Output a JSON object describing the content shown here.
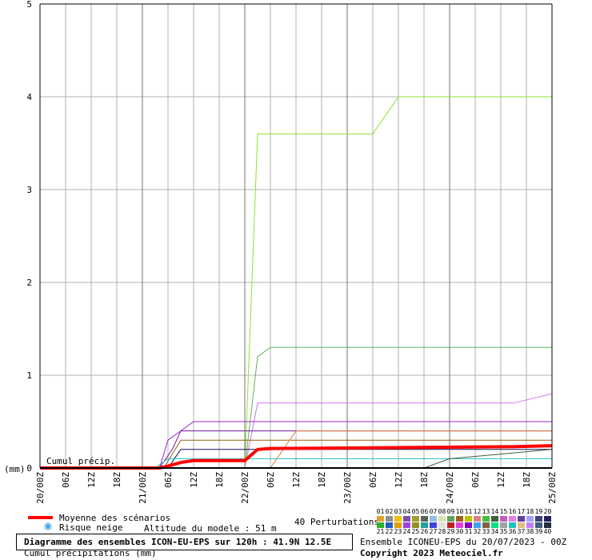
{
  "chart_data": {
    "type": "line",
    "y_unit_label": "(mm)",
    "annotation": "Cumul précip.",
    "xlim": [
      0,
      120
    ],
    "ylim": [
      0,
      5
    ],
    "yticks": [
      0,
      1,
      2,
      3,
      4,
      5
    ],
    "xticks": [
      {
        "value": 0,
        "label": "20/00Z"
      },
      {
        "value": 6,
        "label": "06Z"
      },
      {
        "value": 12,
        "label": "12Z"
      },
      {
        "value": 18,
        "label": "18Z"
      },
      {
        "value": 24,
        "label": "21/00Z"
      },
      {
        "value": 30,
        "label": "06Z"
      },
      {
        "value": 36,
        "label": "12Z"
      },
      {
        "value": 42,
        "label": "18Z"
      },
      {
        "value": 48,
        "label": "22/00Z"
      },
      {
        "value": 54,
        "label": "06Z"
      },
      {
        "value": 60,
        "label": "12Z"
      },
      {
        "value": 66,
        "label": "18Z"
      },
      {
        "value": 72,
        "label": "23/00Z"
      },
      {
        "value": 78,
        "label": "06Z"
      },
      {
        "value": 84,
        "label": "12Z"
      },
      {
        "value": 90,
        "label": "18Z"
      },
      {
        "value": 96,
        "label": "24/00Z"
      },
      {
        "value": 102,
        "label": "06Z"
      },
      {
        "value": 108,
        "label": "12Z"
      },
      {
        "value": 114,
        "label": "18Z"
      },
      {
        "value": 120,
        "label": "25/00Z"
      }
    ],
    "grid": true,
    "series": [
      {
        "color": "#90e030",
        "x": [
          0,
          48,
          51,
          78,
          84,
          120
        ],
        "values": [
          0,
          0,
          3.6,
          3.6,
          4,
          4
        ]
      },
      {
        "color": "#60b060",
        "x": [
          0,
          48,
          51,
          54,
          120
        ],
        "values": [
          0,
          0,
          1.2,
          1.3,
          1.3
        ]
      },
      {
        "color": "#d070f0",
        "x": [
          0,
          48,
          51,
          111,
          120
        ],
        "values": [
          0,
          0,
          0.7,
          0.7,
          0.8
        ]
      },
      {
        "color": "#a020d0",
        "x": [
          0,
          28,
          30,
          33,
          36,
          120
        ],
        "values": [
          0,
          0,
          0.3,
          0.4,
          0.5,
          0.5
        ]
      },
      {
        "color": "#7010a0",
        "x": [
          0,
          28,
          31,
          33,
          120
        ],
        "values": [
          0,
          0,
          0.2,
          0.4,
          0.4
        ]
      },
      {
        "color": "#906010",
        "x": [
          0,
          29,
          33,
          120
        ],
        "values": [
          0,
          0,
          0.3,
          0.3
        ]
      },
      {
        "color": "#101060",
        "x": [
          0,
          30,
          33,
          120
        ],
        "values": [
          0,
          0,
          0.2,
          0.2
        ]
      },
      {
        "color": "#20c0c0",
        "x": [
          0,
          27,
          30,
          120
        ],
        "values": [
          0,
          0,
          0.1,
          0.1
        ]
      },
      {
        "color": "#e08030",
        "x": [
          0,
          54,
          60,
          120
        ],
        "values": [
          0,
          0,
          0.4,
          0.4
        ]
      },
      {
        "color": "#406040",
        "x": [
          0,
          90,
          96,
          120
        ],
        "values": [
          0,
          0,
          0.1,
          0.2
        ]
      },
      {
        "name": "Moyenne des scénarios",
        "color": "#ff0000",
        "width": 4,
        "x": [
          0,
          28,
          30,
          33,
          36,
          48,
          51,
          54,
          84,
          111,
          120
        ],
        "values": [
          0,
          0,
          0.02,
          0.06,
          0.08,
          0.08,
          0.2,
          0.21,
          0.22,
          0.23,
          0.24
        ]
      }
    ]
  },
  "legend": {
    "snow": "Risque neige",
    "altitude": "Altitude du modele : 51 m",
    "perturbations": "40 Perturbations",
    "numbers": [
      "01",
      "02",
      "03",
      "04",
      "05",
      "06",
      "07",
      "08",
      "09",
      "10",
      "11",
      "12",
      "13",
      "14",
      "15",
      "16",
      "17",
      "18",
      "19",
      "20",
      "21",
      "22",
      "23",
      "24",
      "25",
      "26",
      "27",
      "28",
      "29",
      "30",
      "31",
      "32",
      "33",
      "34",
      "35",
      "36",
      "37",
      "38",
      "39",
      "40"
    ],
    "colors": [
      "#e0a030",
      "#909090",
      "#f0c000",
      "#8050a0",
      "#a0a030",
      "#606060",
      "#90c0e0",
      "#e0e0b0",
      "#60a060",
      "#a06020",
      "#c0c000",
      "#e08080",
      "#40c040",
      "#406040",
      "#c060c0",
      "#e080e0",
      "#6040a0",
      "#a0a0ff",
      "#404080",
      "#202060",
      "#30b030",
      "#2060c0",
      "#e0a000",
      "#a040e0",
      "#909020",
      "#20a0a0",
      "#4040e0",
      "#e0e0e0",
      "#c02020",
      "#e040e0",
      "#8000c0",
      "#40a0ff",
      "#806040",
      "#00e080",
      "#a0a0a0",
      "#20c0c0",
      "#e0c080",
      "#c080ff",
      "#406080",
      "#203040"
    ]
  },
  "footer": {
    "title": "Diagramme des ensembles ICON-EU-EPS sur 120h : 41.9N 12.5E",
    "subtitle": "Cumul précipitations (mm)",
    "run": "Ensemble ICONEU-EPS du 20/07/2023 - 00Z",
    "copyright": "Copyright 2023 Meteociel.fr"
  }
}
